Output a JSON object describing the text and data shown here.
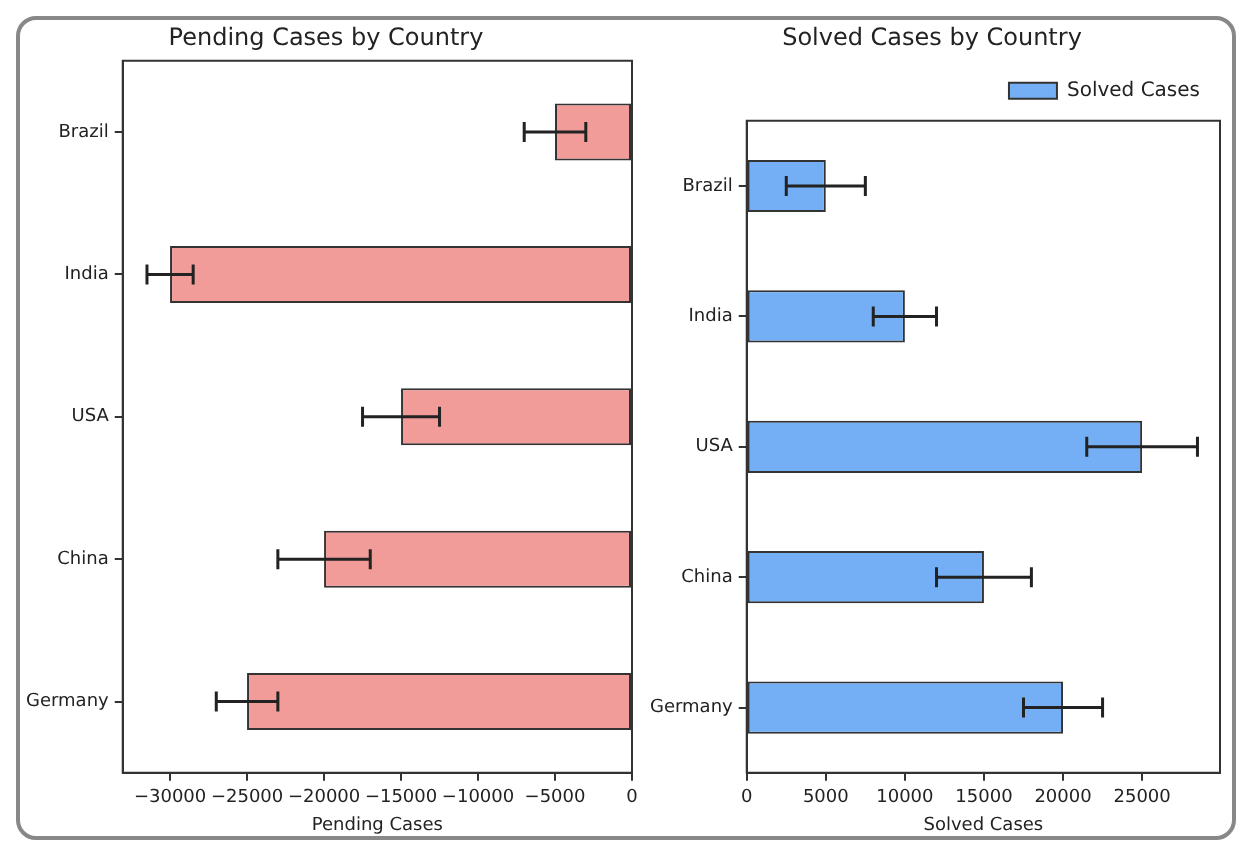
{
  "chart_data": [
    {
      "type": "bar",
      "orientation": "horizontal",
      "title": "Pending Cases by Country",
      "xlabel": "Pending Cases",
      "categories": [
        "Brazil",
        "India",
        "USA",
        "China",
        "Germany"
      ],
      "series": [
        {
          "color": "#f19c99",
          "values": [
            -5000,
            -30000,
            -15000,
            -20000,
            -25000
          ],
          "errors": [
            2000,
            1500,
            2500,
            3000,
            2000
          ]
        }
      ],
      "xlim": [
        -33075,
        0
      ],
      "xticks": [
        {
          "value": -30000,
          "label": "−30000"
        },
        {
          "value": -25000,
          "label": "−25000"
        },
        {
          "value": -20000,
          "label": "−20000"
        },
        {
          "value": -15000,
          "label": "−15000"
        },
        {
          "value": -10000,
          "label": "−10000"
        },
        {
          "value": -5000,
          "label": "−5000"
        },
        0
      ],
      "grid": false,
      "legend": false
    },
    {
      "type": "bar",
      "orientation": "horizontal",
      "title": "Solved Cases by Country",
      "xlabel": "Solved Cases",
      "categories": [
        "Brazil",
        "India",
        "USA",
        "China",
        "Germany"
      ],
      "series": [
        {
          "name": "Solved Cases",
          "color": "#74aff5",
          "values": [
            5000,
            10000,
            25000,
            15000,
            20000
          ],
          "errors": [
            2500,
            2000,
            3500,
            3000,
            2500
          ]
        }
      ],
      "xlim": [
        0,
        29925
      ],
      "xticks": [
        0,
        5000,
        10000,
        15000,
        20000,
        25000
      ],
      "grid": false,
      "legend": "top right"
    }
  ]
}
